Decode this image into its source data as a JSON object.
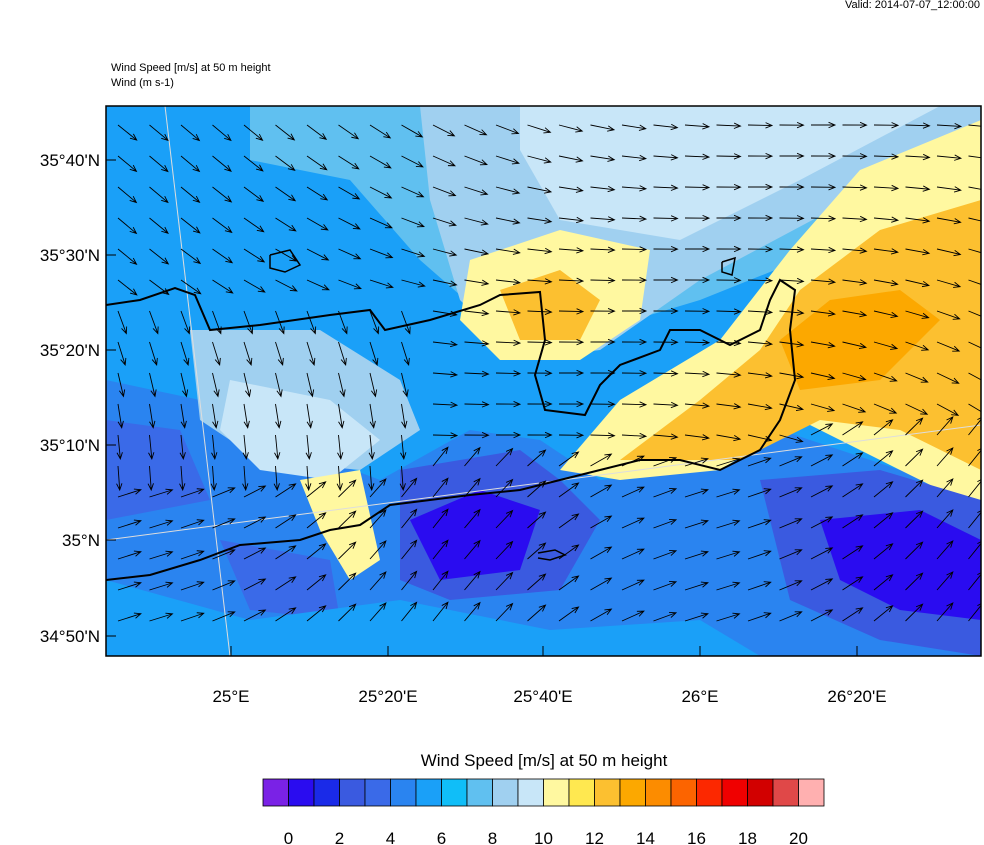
{
  "header": {
    "valid": "Valid: 2014-07-07_12:00:00",
    "field_title": "Wind Speed [m/s] at 50 m height",
    "vector_title": "Wind   (m s-1)"
  },
  "map": {
    "lat_labels": [
      "35°40'N",
      "35°30'N",
      "35°20'N",
      "35°10'N",
      "35°N",
      "34°50'N"
    ],
    "lon_labels": [
      "25°E",
      "25°20'E",
      "25°40'E",
      "26°E",
      "26°20'E"
    ]
  },
  "colorbar": {
    "title": "Wind Speed [m/s] at 50 m height",
    "colors": [
      "#7a22e6",
      "#2a0cf0",
      "#1a2ae8",
      "#3a5ae0",
      "#3a6ae8",
      "#2a84f0",
      "#1aa0f8",
      "#10bef8",
      "#60c0f0",
      "#a0d0f0",
      "#c8e6f8",
      "#fff8a0",
      "#ffe850",
      "#fcc030",
      "#fca800",
      "#fc8c00",
      "#fc6400",
      "#fc2800",
      "#f00000",
      "#d20000",
      "#e04848",
      "#ffb0b0"
    ],
    "tick_labels": [
      "0",
      "2",
      "4",
      "6",
      "8",
      "10",
      "12",
      "14",
      "16",
      "18",
      "20"
    ]
  }
}
